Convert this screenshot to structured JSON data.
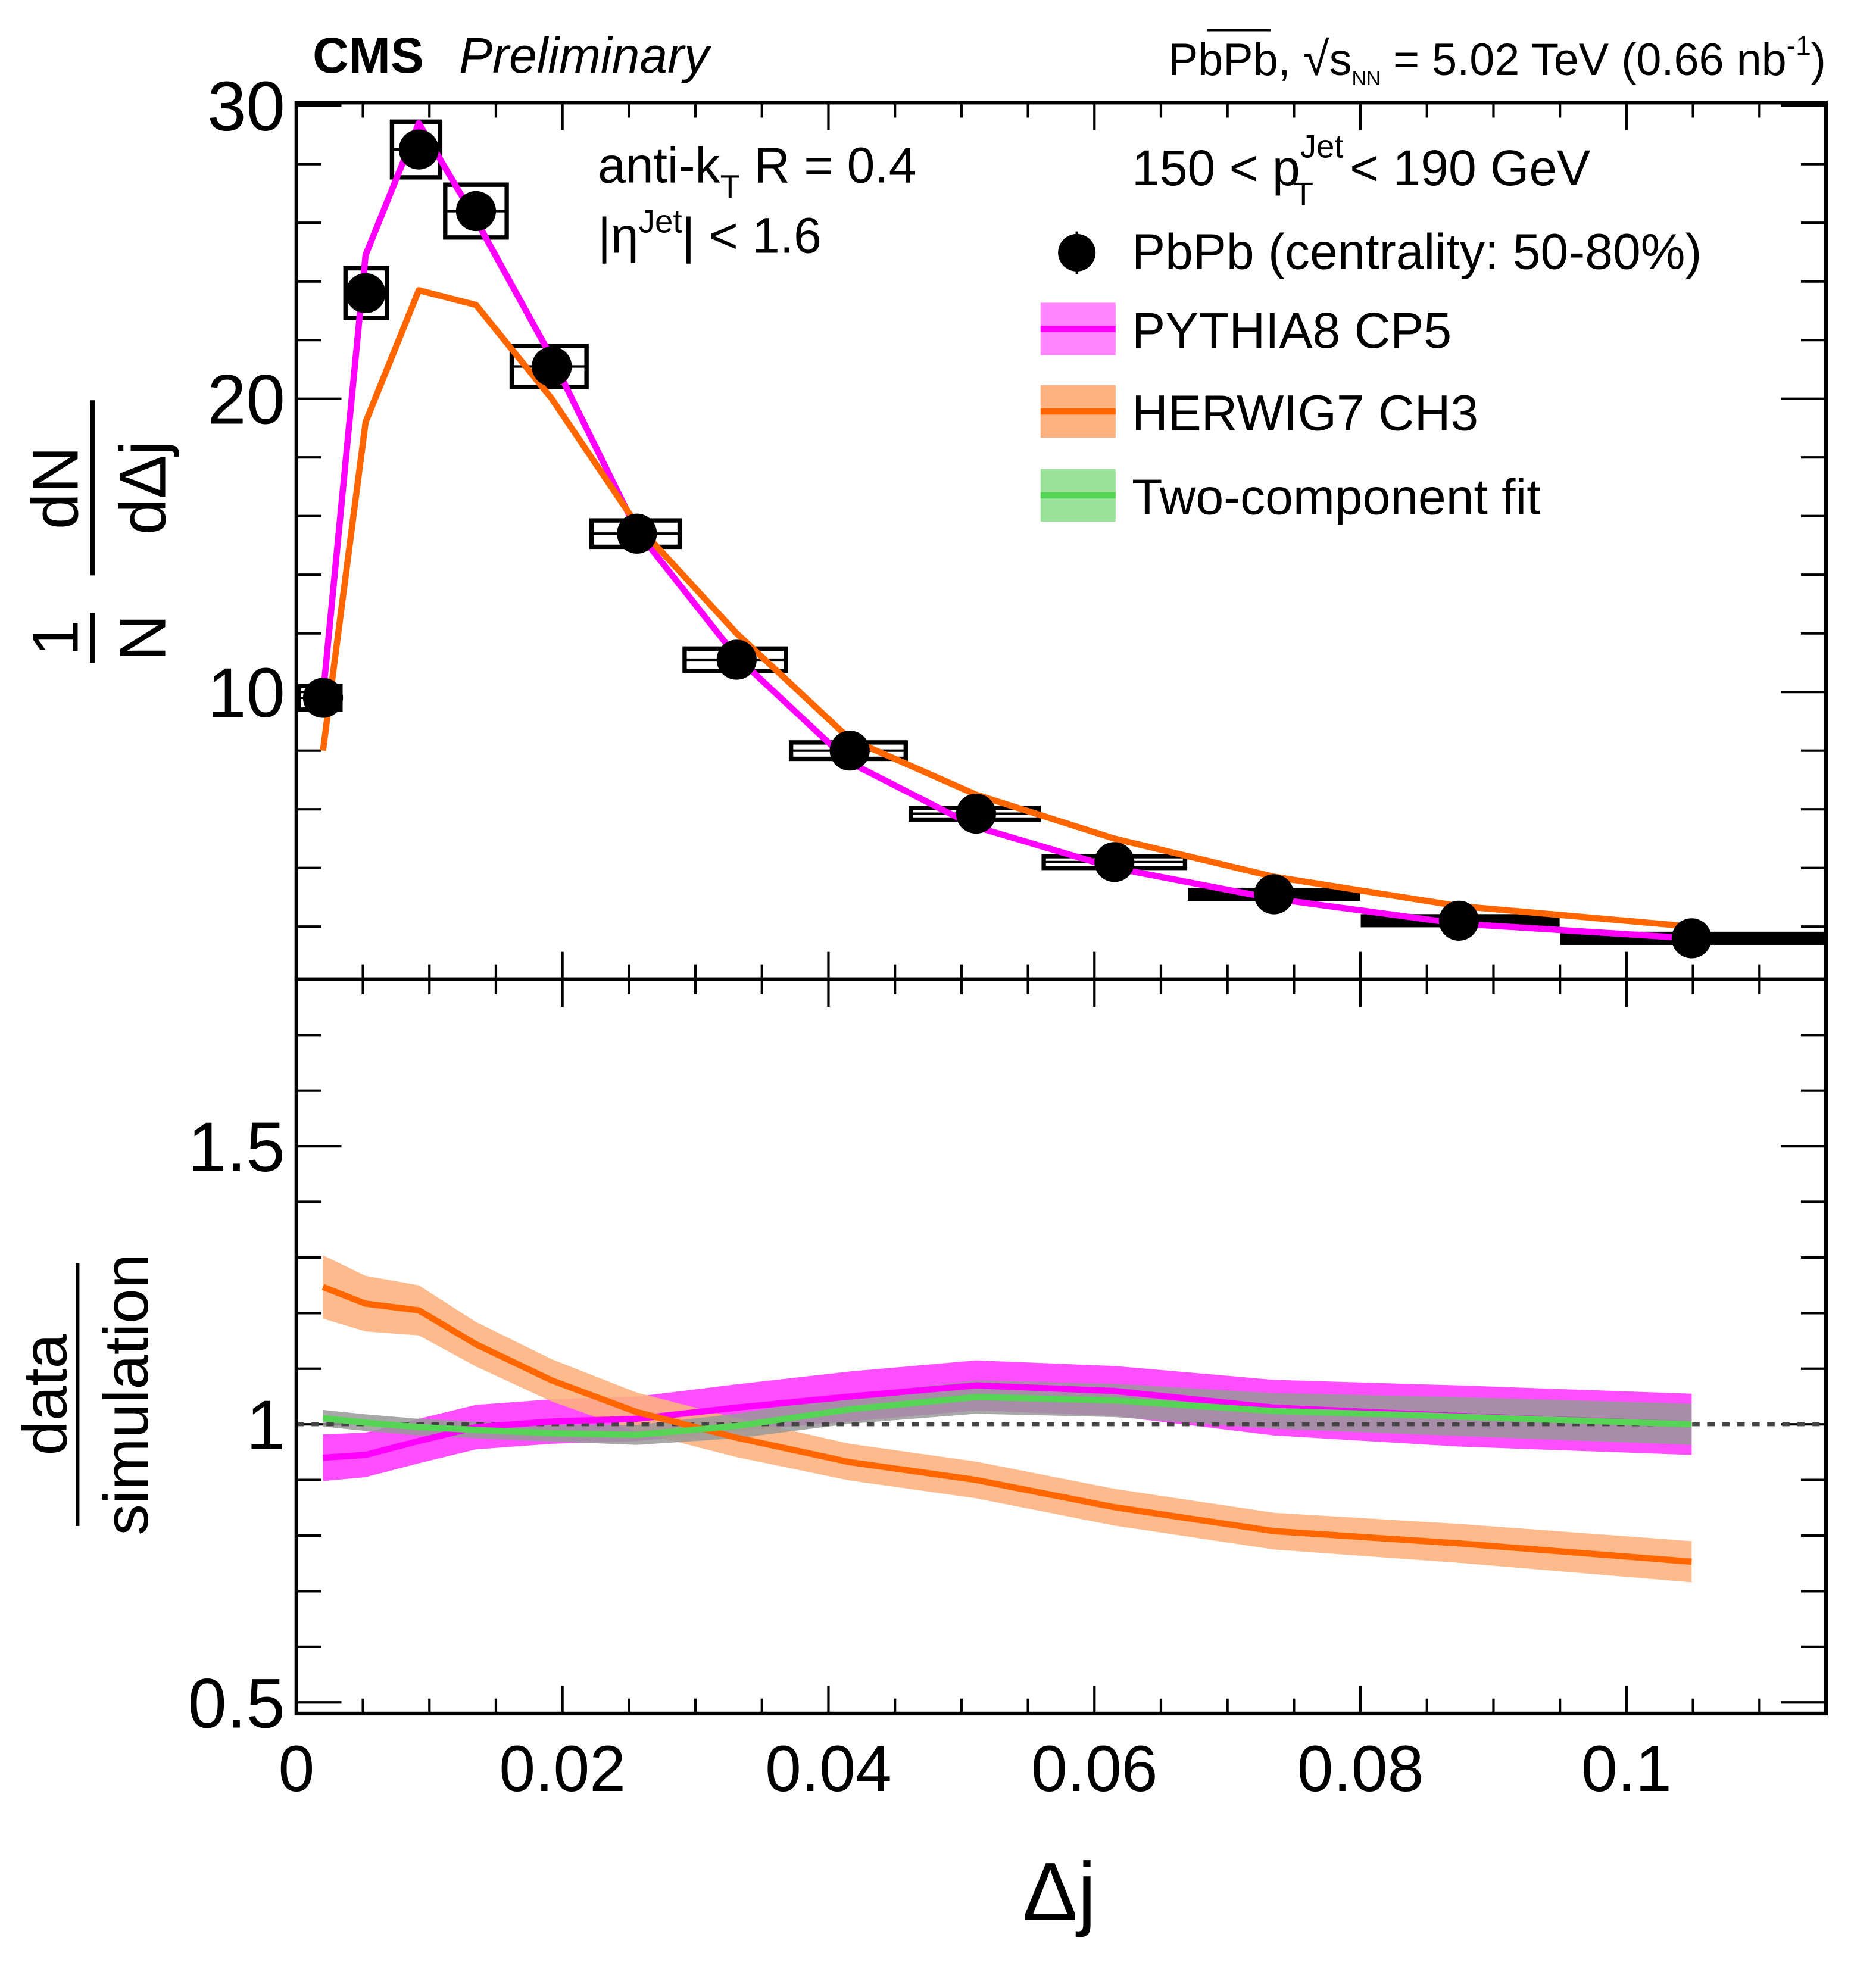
{
  "header": {
    "experiment": "CMS",
    "status": "Preliminary",
    "collision": "PbPb, ",
    "sqrt": "s",
    "sqrt_sub": "NN",
    "energy": " = 5.02 TeV (0.66 nb",
    "lumi_exp": "-1",
    "close": ")"
  },
  "annotations": {
    "algo": "anti-k",
    "algo_sub": "T",
    "algo_rest": " R = 0.4",
    "eta_pre": "|η",
    "eta_sup": "Jet",
    "eta_rest": "| < 1.6",
    "pt_pre": "150 < p",
    "pt_sub": "T",
    "pt_sup": "Jet",
    "pt_rest": " < 190 GeV"
  },
  "colors": {
    "data": "#000000",
    "pythia": "#ff00ff",
    "pythia_band": "#ff44ff",
    "herwig": "#ff6600",
    "herwig_band": "#fdb27f",
    "fit": "#55d455",
    "fit_band": "#999999",
    "fit_band_light": "#9be39b"
  },
  "chart_data": [
    {
      "type": "scatter",
      "panel": "top",
      "ylabel_num1": "1",
      "ylabel_den1": "N",
      "ylabel_num2": "dN",
      "ylabel_den2": "dΔj",
      "xlim": [
        0,
        0.115
      ],
      "ylim": [
        0.2,
        30.1
      ],
      "yticks": [
        "10",
        "20",
        "30"
      ],
      "bin_edges": [
        0,
        0.0035,
        0.007,
        0.011,
        0.016,
        0.022,
        0.029,
        0.037,
        0.046,
        0.056,
        0.067,
        0.08,
        0.095,
        0.115
      ],
      "x": [
        0.002,
        0.0052,
        0.0092,
        0.0135,
        0.0192,
        0.0256,
        0.0331,
        0.0416,
        0.0511,
        0.0615,
        0.0735,
        0.0874,
        0.1049
      ],
      "series": [
        {
          "name": "PbPb (centrality: 50-80%)",
          "kind": "data",
          "values": [
            9.8,
            23.6,
            28.5,
            26.4,
            21.1,
            15.4,
            11.1,
            8.0,
            5.85,
            4.2,
            3.1,
            2.2,
            1.6
          ],
          "syst": [
            0.4,
            0.85,
            0.95,
            0.9,
            0.7,
            0.45,
            0.38,
            0.28,
            0.2,
            0.2,
            0.15,
            0.15,
            0.15
          ]
        },
        {
          "name": "PYTHIA8 CP5",
          "kind": "line",
          "values": [
            9.9,
            24.9,
            29.4,
            26.1,
            21.4,
            15.5,
            11.2,
            7.6,
            5.4,
            4.0,
            2.95,
            2.1,
            1.6
          ]
        },
        {
          "name": "HERWIG7 CH3",
          "kind": "line",
          "values": [
            8.0,
            19.2,
            23.7,
            23.2,
            20.0,
            15.7,
            12.0,
            8.4,
            6.5,
            5.0,
            3.7,
            2.7,
            2.0
          ]
        }
      ],
      "legend": [
        "PbPb (centrality: 50-80%)",
        "PYTHIA8 CP5",
        "HERWIG7 CH3",
        "Two-component fit"
      ],
      "legend_position": "top-right"
    },
    {
      "type": "line",
      "panel": "bottom",
      "ylabel_num": "data",
      "ylabel_den": "simulation",
      "xlabel": "Δj",
      "xlim": [
        0,
        0.115
      ],
      "ylim": [
        0.48,
        1.8
      ],
      "xticks": [
        "0",
        "0.02",
        "0.04",
        "0.06",
        "0.08",
        "0.1"
      ],
      "yticks": [
        "0.5",
        "1",
        "1.5"
      ],
      "reference_line": 1,
      "x": [
        0.002,
        0.0052,
        0.0092,
        0.0135,
        0.0192,
        0.0256,
        0.0331,
        0.0416,
        0.0511,
        0.0615,
        0.0735,
        0.0874,
        0.1049
      ],
      "series": [
        {
          "name": "PYTHIA8 CP5",
          "values": [
            0.94,
            0.945,
            0.97,
            0.995,
            1.005,
            1.01,
            1.03,
            1.05,
            1.07,
            1.06,
            1.03,
            1.015,
            1.0
          ],
          "unc": [
            0.042,
            0.04,
            0.04,
            0.04,
            0.04,
            0.04,
            0.042,
            0.045,
            0.045,
            0.045,
            0.05,
            0.055,
            0.055
          ]
        },
        {
          "name": "HERWIG7 CH3",
          "values": [
            1.247,
            1.217,
            1.205,
            1.144,
            1.079,
            1.022,
            0.976,
            0.932,
            0.9,
            0.851,
            0.808,
            0.786,
            0.753
          ],
          "unc": [
            0.057,
            0.05,
            0.045,
            0.04,
            0.038,
            0.035,
            0.035,
            0.033,
            0.033,
            0.033,
            0.033,
            0.035,
            0.037
          ]
        },
        {
          "name": "Two-component fit",
          "values": [
            1.011,
            1.003,
            0.995,
            0.99,
            0.984,
            0.981,
            0.997,
            1.027,
            1.049,
            1.043,
            1.024,
            1.014,
            1.0
          ],
          "unc": [
            0.015,
            0.015,
            0.015,
            0.015,
            0.015,
            0.018,
            0.022,
            0.026,
            0.03,
            0.03,
            0.032,
            0.035,
            0.037
          ]
        }
      ]
    }
  ]
}
